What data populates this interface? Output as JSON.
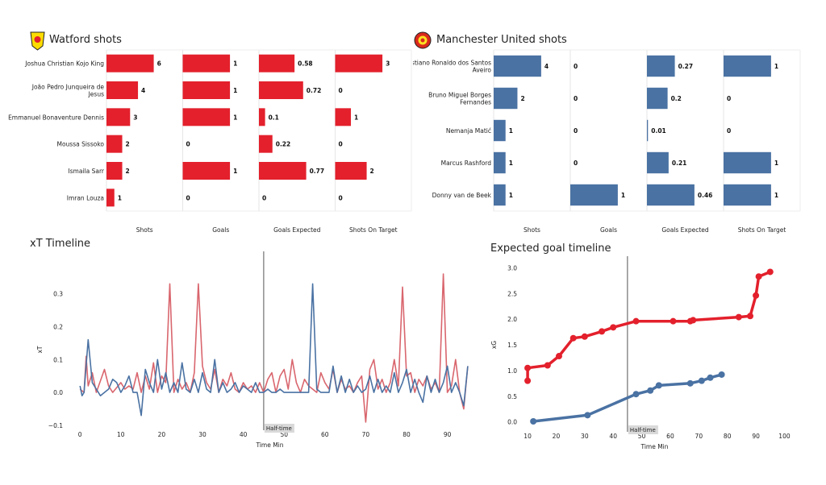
{
  "chart_data": [
    {
      "type": "bar",
      "title": "Watford shots",
      "color": "#e3202c",
      "categories": [
        "Joshua Christian Kojo King",
        "João Pedro Junqueira de Jesus",
        "Emmanuel Bonaventure Dennis",
        "Moussa Sissoko",
        "Ismaila Sarr",
        "Imran Louza"
      ],
      "metrics": [
        "Shots",
        "Goals",
        "Goals Expected",
        "Shots On Target"
      ],
      "series": [
        {
          "name": "Shots",
          "values": [
            6,
            4,
            3,
            2,
            2,
            1
          ],
          "labels": [
            "6",
            "4",
            "3",
            "2",
            "2",
            "1"
          ]
        },
        {
          "name": "Goals",
          "values": [
            1,
            1,
            1,
            0,
            1,
            0
          ],
          "labels": [
            "1",
            "1",
            "1",
            "0",
            "1",
            "0"
          ]
        },
        {
          "name": "Goals Expected",
          "values": [
            0.58,
            0.72,
            0.1,
            0.22,
            0.77,
            0
          ],
          "labels": [
            "0.58",
            "0.72",
            "0.1",
            "0.22",
            "0.77",
            "0"
          ]
        },
        {
          "name": "Shots On Target",
          "values": [
            3,
            0,
            1,
            0,
            2,
            0
          ],
          "labels": [
            "3",
            "0",
            "1",
            "0",
            "2",
            "0"
          ]
        }
      ]
    },
    {
      "type": "bar",
      "title": "Manchester United shots",
      "color": "#4a72a3",
      "categories": [
        "Cristiano Ronaldo dos Santos Aveiro",
        "Bruno Miguel Borges Fernandes",
        "Nemanja Matić",
        "Marcus Rashford",
        "Donny van de Beek"
      ],
      "metrics": [
        "Shots",
        "Goals",
        "Goals Expected",
        "Shots On Target"
      ],
      "series": [
        {
          "name": "Shots",
          "values": [
            4,
            2,
            1,
            1,
            1
          ],
          "labels": [
            "4",
            "2",
            "1",
            "1",
            "1"
          ]
        },
        {
          "name": "Goals",
          "values": [
            0,
            0,
            0,
            0,
            1
          ],
          "labels": [
            "0",
            "0",
            "0",
            "0",
            "1"
          ]
        },
        {
          "name": "Goals Expected",
          "values": [
            0.27,
            0.2,
            0.01,
            0.21,
            0.46
          ],
          "labels": [
            "0.27",
            "0.2",
            "0.01",
            "0.21",
            "0.46"
          ]
        },
        {
          "name": "Shots On Target",
          "values": [
            1,
            0,
            0,
            1,
            1
          ],
          "labels": [
            "1",
            "0",
            "0",
            "1",
            "1"
          ]
        }
      ]
    },
    {
      "type": "line",
      "title": "xT Timeline",
      "xlabel": "Time Min",
      "ylabel": "xT",
      "xlim": [
        -3,
        96
      ],
      "ylim": [
        -0.1,
        0.36
      ],
      "xticks": [
        0,
        10,
        20,
        30,
        40,
        50,
        60,
        70,
        80,
        90
      ],
      "yticks": [
        -0.1,
        0.0,
        0.1,
        0.2,
        0.3
      ],
      "ytick_labels": [
        "−0.1",
        "0.0",
        "0.1",
        "0.2",
        "0.3"
      ],
      "halftime": 45,
      "halftime_label": "Half-time",
      "series": [
        {
          "name": "Watford",
          "color": "#d9666e",
          "x": [
            0,
            1,
            1.5,
            2,
            3,
            4,
            6,
            7,
            8,
            10,
            11,
            12,
            13,
            14,
            15,
            16,
            17,
            18,
            19,
            20,
            21,
            22,
            23,
            24,
            25,
            26,
            27,
            28,
            29,
            30,
            31,
            32,
            33,
            34,
            35,
            36,
            37,
            38,
            39,
            40,
            41,
            42,
            43,
            44,
            45,
            46,
            47,
            48,
            49,
            50,
            51,
            52,
            53,
            54,
            55,
            56,
            57,
            58,
            59,
            60,
            61,
            62,
            63,
            64,
            65,
            66,
            67,
            68,
            69,
            70,
            71,
            72,
            73,
            74,
            75,
            76,
            77,
            78,
            79,
            80,
            81,
            82,
            83,
            84,
            85,
            86,
            87,
            88,
            89,
            90,
            91,
            92,
            93,
            94,
            95
          ],
          "y": [
            0.01,
            0.0,
            0.11,
            0.02,
            0.06,
            0.0,
            0.07,
            0.02,
            0.0,
            0.03,
            0.01,
            0.02,
            0.01,
            0.06,
            0.0,
            0.05,
            0.01,
            0.09,
            0.0,
            0.05,
            0.03,
            0.33,
            0.0,
            0.04,
            0.01,
            0.03,
            0.0,
            0.06,
            0.33,
            0.08,
            0.03,
            0.01,
            0.07,
            0.0,
            0.04,
            0.02,
            0.06,
            0.01,
            0.0,
            0.03,
            0.01,
            0.02,
            0.0,
            0.03,
            0.0,
            0.04,
            0.06,
            0.0,
            0.05,
            0.07,
            0.01,
            0.1,
            0.03,
            0.0,
            0.04,
            0.02,
            0.01,
            0.0,
            0.06,
            0.03,
            0.01,
            0.07,
            0.0,
            0.04,
            0.01,
            0.02,
            0.0,
            0.03,
            0.05,
            -0.09,
            0.07,
            0.1,
            0.01,
            0.04,
            0.0,
            0.03,
            0.1,
            0.02,
            0.32,
            0.05,
            0.06,
            0.0,
            0.04,
            0.02,
            0.05,
            0.01,
            0.03,
            0.0,
            0.36,
            0.0,
            0.02,
            0.1,
            0.0,
            -0.05,
            0.08
          ]
        },
        {
          "name": "Manchester United",
          "color": "#4a72a3",
          "x": [
            0,
            0.5,
            1,
            2,
            3,
            4,
            5,
            6,
            7,
            8,
            9,
            10,
            11,
            12,
            13,
            14,
            15,
            16,
            17,
            18,
            19,
            20,
            21,
            22,
            23,
            24,
            25,
            26,
            27,
            28,
            29,
            30,
            31,
            32,
            33,
            34,
            35,
            36,
            37,
            38,
            39,
            40,
            41,
            42,
            43,
            44,
            45,
            46,
            47,
            48,
            49,
            50,
            51,
            52,
            53,
            54,
            55,
            56,
            57,
            58,
            59,
            60,
            61,
            62,
            63,
            64,
            65,
            66,
            67,
            68,
            69,
            70,
            71,
            72,
            73,
            74,
            75,
            76,
            77,
            78,
            79,
            80,
            81,
            82,
            83,
            84,
            85,
            86,
            87,
            88,
            89,
            90,
            91,
            92,
            93,
            94,
            95
          ],
          "y": [
            0.02,
            -0.01,
            0.0,
            0.16,
            0.03,
            0.01,
            -0.01,
            0.0,
            0.01,
            0.04,
            0.03,
            0.0,
            0.02,
            0.05,
            0.0,
            0.0,
            -0.07,
            0.07,
            0.03,
            0.0,
            0.1,
            0.01,
            0.06,
            0.0,
            0.03,
            0.0,
            0.09,
            0.01,
            0.0,
            0.04,
            0.0,
            0.06,
            0.01,
            0.0,
            0.1,
            0.0,
            0.03,
            0.0,
            0.01,
            0.03,
            0.0,
            0.02,
            0.01,
            0.0,
            0.03,
            0.0,
            0.0,
            0.01,
            0.0,
            0.0,
            0.01,
            0.0,
            0.0,
            0.0,
            0.0,
            0.0,
            0.0,
            0.0,
            0.33,
            0.01,
            0.0,
            0.0,
            0.0,
            0.08,
            0.0,
            0.05,
            0.0,
            0.04,
            0.0,
            0.02,
            0.0,
            0.01,
            0.05,
            0.0,
            0.04,
            0.0,
            0.02,
            0.0,
            0.06,
            0.0,
            0.03,
            0.07,
            0.0,
            0.04,
            0.0,
            -0.03,
            0.05,
            0.0,
            0.04,
            0.0,
            0.03,
            0.08,
            0.0,
            0.03,
            0.0,
            -0.04,
            0.08
          ]
        }
      ]
    },
    {
      "type": "line",
      "title": "Expected goal timeline",
      "xlabel": "Time Min",
      "ylabel": "xG",
      "xlim": [
        8,
        101
      ],
      "ylim": [
        -0.1,
        3.1
      ],
      "xticks": [
        10,
        20,
        30,
        40,
        50,
        60,
        70,
        80,
        90,
        100
      ],
      "yticks": [
        0.0,
        0.5,
        1.0,
        1.5,
        2.0,
        2.5,
        3.0
      ],
      "ytick_labels": [
        "0.0",
        "0.5",
        "1.0",
        "1.5",
        "2.0",
        "2.5",
        "3.0"
      ],
      "halftime": 45,
      "halftime_label": "Half-time",
      "series": [
        {
          "name": "Watford",
          "color": "#e3202c",
          "x": [
            10,
            10,
            17,
            21,
            26,
            30,
            36,
            40,
            48,
            61,
            67,
            68,
            84,
            88,
            90,
            91,
            95
          ],
          "y": [
            0.8,
            1.05,
            1.1,
            1.28,
            1.63,
            1.66,
            1.76,
            1.84,
            1.96,
            1.96,
            1.96,
            1.98,
            2.04,
            2.06,
            2.46,
            2.83,
            2.92
          ]
        },
        {
          "name": "Manchester United",
          "color": "#4a72a3",
          "x": [
            12,
            31,
            48,
            53,
            56,
            67,
            71,
            74,
            78
          ],
          "y": [
            0.01,
            0.13,
            0.54,
            0.61,
            0.71,
            0.75,
            0.8,
            0.86,
            0.92
          ]
        }
      ]
    }
  ]
}
